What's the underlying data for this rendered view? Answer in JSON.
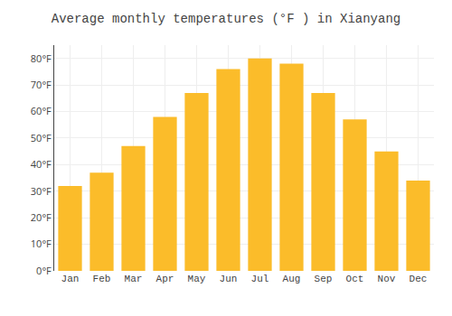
{
  "chart_data": {
    "type": "bar",
    "title": "Average monthly temperatures (°F ) in Xianyang",
    "categories": [
      "Jan",
      "Feb",
      "Mar",
      "Apr",
      "May",
      "Jun",
      "Jul",
      "Aug",
      "Sep",
      "Oct",
      "Nov",
      "Dec"
    ],
    "values": [
      32,
      37,
      47,
      58,
      67,
      76,
      80,
      78,
      67,
      57,
      45,
      34
    ],
    "color": "#FBBC2A",
    "ylim": [
      0,
      85
    ],
    "yticks": [
      {
        "value": 0,
        "label": "0°F"
      },
      {
        "value": 10,
        "label": "10°F"
      },
      {
        "value": 20,
        "label": "20°F"
      },
      {
        "value": 30,
        "label": "30°F"
      },
      {
        "value": 40,
        "label": "40°F"
      },
      {
        "value": 50,
        "label": "50°F"
      },
      {
        "value": 60,
        "label": "60°F"
      },
      {
        "value": 70,
        "label": "70°F"
      },
      {
        "value": 80,
        "label": "80°F"
      }
    ],
    "grid": true
  }
}
